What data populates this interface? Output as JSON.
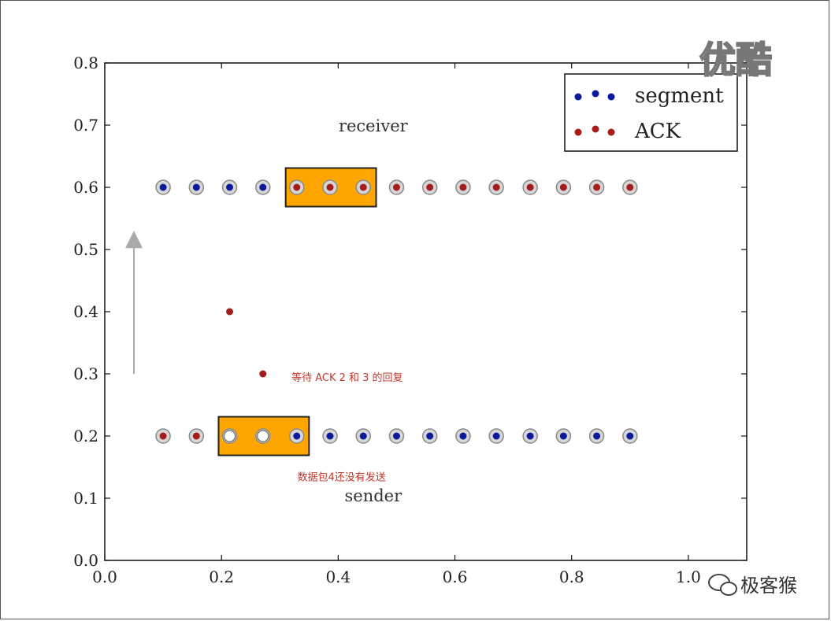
{
  "chart_data": {
    "type": "scatter",
    "xlim": [
      0.0,
      1.1
    ],
    "ylim": [
      0.0,
      0.8
    ],
    "xticks": [
      "0.0",
      "0.2",
      "0.4",
      "0.6",
      "0.8",
      "1.0"
    ],
    "yticks": [
      "0.0",
      "0.1",
      "0.2",
      "0.3",
      "0.4",
      "0.5",
      "0.6",
      "0.7",
      "0.8"
    ],
    "grid": false,
    "legend_position": "top-right",
    "legend": [
      {
        "label": "segment",
        "color": "#0a1a9a"
      },
      {
        "label": "ACK",
        "color": "#a51c1c"
      }
    ],
    "receiver_row": {
      "y": 0.6,
      "x": [
        0.1,
        0.157,
        0.214,
        0.271,
        0.329,
        0.386,
        0.443,
        0.5,
        0.557,
        0.614,
        0.671,
        0.729,
        0.786,
        0.843,
        0.9
      ],
      "kinds": [
        "segment",
        "segment",
        "segment",
        "segment",
        "ack",
        "ack",
        "ack",
        "ack",
        "ack",
        "ack",
        "ack",
        "ack",
        "ack",
        "ack",
        "ack"
      ]
    },
    "sender_row": {
      "y": 0.2,
      "x": [
        0.1,
        0.157,
        0.214,
        0.271,
        0.329,
        0.386,
        0.443,
        0.5,
        0.557,
        0.614,
        0.671,
        0.729,
        0.786,
        0.843,
        0.9
      ],
      "kinds": [
        "ack",
        "ack",
        "empty",
        "empty",
        "segment",
        "segment",
        "segment",
        "segment",
        "segment",
        "segment",
        "segment",
        "segment",
        "segment",
        "segment",
        "segment"
      ]
    },
    "in_flight": [
      {
        "x": 0.214,
        "y": 0.4,
        "kind": "ack"
      },
      {
        "x": 0.271,
        "y": 0.3,
        "kind": "ack"
      }
    ],
    "windows": [
      {
        "name": "receiver-window",
        "x0": 0.31,
        "x1": 0.465,
        "y0": 0.569,
        "y1": 0.631,
        "color": "#ffa500"
      },
      {
        "name": "sender-window",
        "x0": 0.195,
        "x1": 0.35,
        "y0": 0.169,
        "y1": 0.231,
        "color": "#ffa500"
      }
    ],
    "arrow": {
      "x": 0.05,
      "y0": 0.3,
      "y1": 0.53,
      "color": "#aaaaaa"
    },
    "labels": {
      "receiver": {
        "text": "receiver",
        "x": 0.46,
        "y": 0.7
      },
      "sender": {
        "text": "sender",
        "x": 0.46,
        "y": 0.105
      }
    },
    "annotations": [
      {
        "text": "等待 ACK 2 和 3 的回复",
        "x": 0.32,
        "y": 0.295
      },
      {
        "text": "数据包4还没有发送",
        "x": 0.33,
        "y": 0.135
      }
    ]
  },
  "colors": {
    "segment": "#0a1a9a",
    "ack": "#a51c1c",
    "ring": "#8a8a8a",
    "window": "#ffa500"
  },
  "watermark": {
    "top_right": "优酷",
    "bottom_right": "极客猴"
  }
}
